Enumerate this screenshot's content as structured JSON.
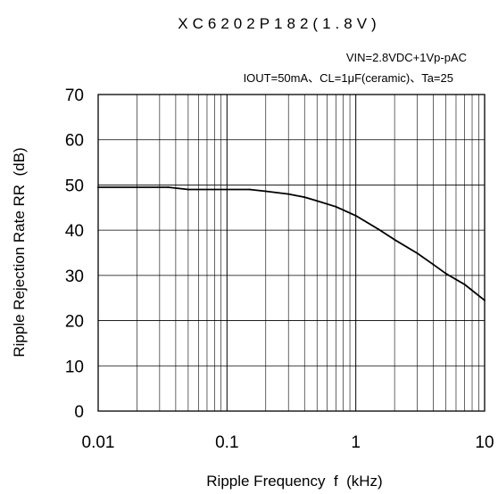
{
  "chart_data": {
    "type": "line",
    "title": "XC6202P182(1.8V)",
    "conditions": [
      "VIN=2.8VDC+1Vp-pAC",
      "IOUT=50mA、CL=1μF(ceramic)、Ta=25"
    ],
    "xlabel": "Ripple Frequency  f  (kHz)",
    "ylabel": "Ripple Rejection Rate RR  (dB)",
    "x_scale": "log",
    "xlim": [
      0.01,
      10
    ],
    "ylim": [
      0,
      70
    ],
    "x_ticks": [
      0.01,
      0.1,
      1,
      10
    ],
    "x_tick_labels": [
      "0.01",
      "0.1",
      "1",
      "10"
    ],
    "y_ticks": [
      0,
      10,
      20,
      30,
      40,
      50,
      60,
      70
    ],
    "y_tick_labels": [
      "0",
      "10",
      "20",
      "30",
      "40",
      "50",
      "60",
      "70"
    ],
    "grid": true,
    "series": [
      {
        "color": "#000000",
        "x": [
          0.01,
          0.02,
          0.035,
          0.05,
          0.08,
          0.15,
          0.2,
          0.3,
          0.4,
          0.5,
          0.7,
          1.0,
          1.5,
          2,
          3,
          4,
          5,
          7,
          10
        ],
        "y": [
          49.5,
          49.5,
          49.5,
          49.0,
          49.0,
          49.0,
          48.6,
          48.0,
          47.3,
          46.5,
          45.2,
          43.2,
          40.2,
          37.9,
          34.9,
          32.4,
          30.4,
          28.0,
          24.5
        ]
      }
    ]
  }
}
